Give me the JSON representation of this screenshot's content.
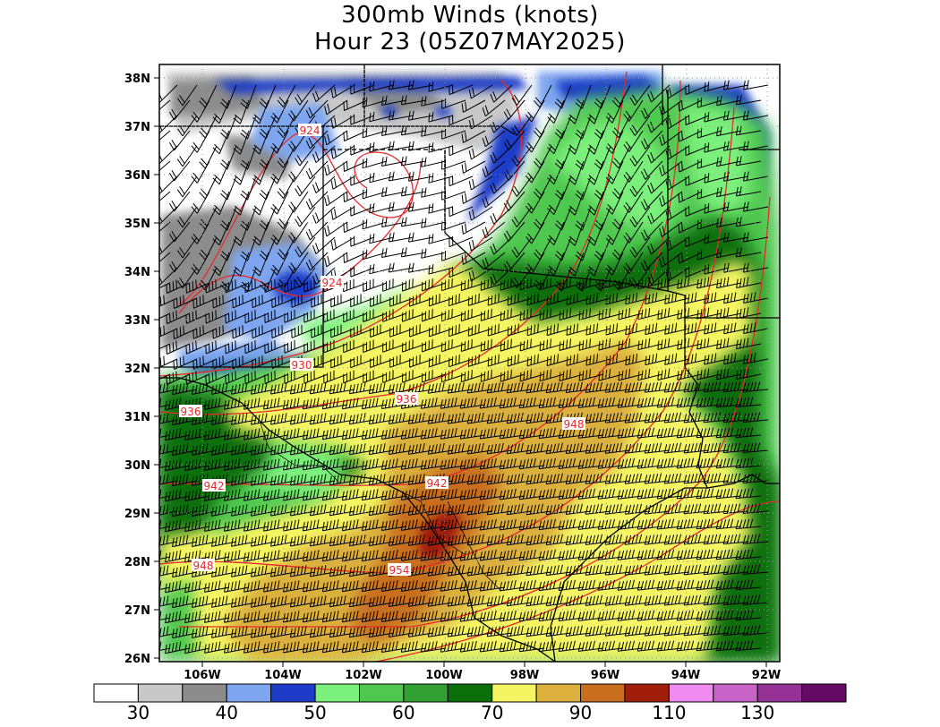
{
  "title": "300mb Winds (knots)",
  "subtitle": "Hour 23 (05Z07MAY2025)",
  "lat_labels": [
    "38N",
    "37N",
    "36N",
    "35N",
    "34N",
    "33N",
    "32N",
    "31N",
    "30N",
    "29N",
    "28N",
    "27N",
    "26N"
  ],
  "lon_labels": [
    "106W",
    "104W",
    "102W",
    "100W",
    "98W",
    "96W",
    "94W",
    "92W"
  ],
  "contour_labels": [
    "924",
    "924",
    "930",
    "936",
    "936",
    "942",
    "942",
    "948",
    "948",
    "954"
  ],
  "colorbar": {
    "colors": [
      "#ffffff",
      "#c8c8c8",
      "#8c8c8c",
      "#7ea6f0",
      "#1e3cc8",
      "#7cf07c",
      "#50c850",
      "#32a032",
      "#0a6e0a",
      "#f5f564",
      "#dcb03c",
      "#c86e1e",
      "#a01e0a",
      "#f08cf0",
      "#c864c8",
      "#963296",
      "#640a64"
    ],
    "labels": [
      "30",
      "40",
      "50",
      "60",
      "70",
      "90",
      "110",
      "130"
    ]
  }
}
